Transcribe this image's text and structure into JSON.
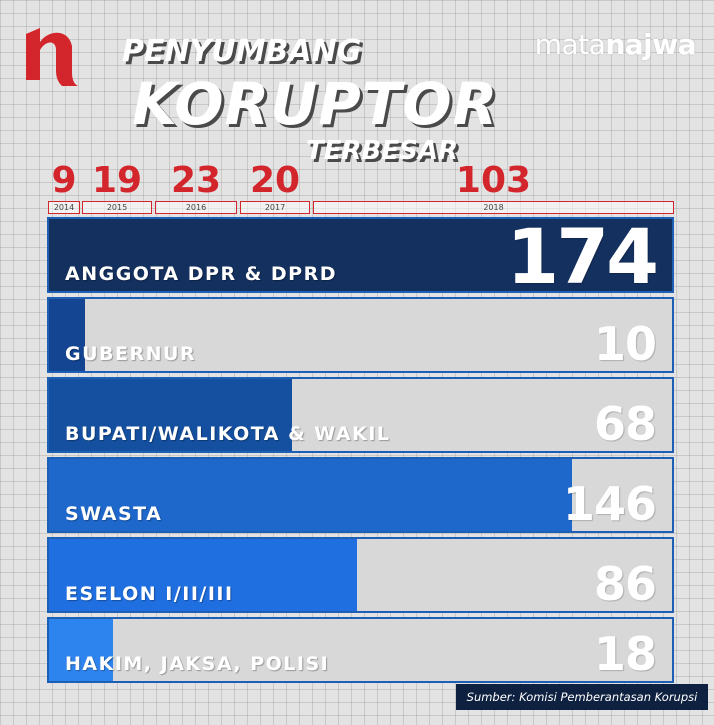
{
  "header": {
    "title_line1": "PENYUMBANG",
    "title_line2": "KORUPTOR",
    "title_line3": "TERBESAR",
    "brand_part1": "mata",
    "brand_part2": "najwa",
    "logo_icon": "najwa-n-logo-icon"
  },
  "colors": {
    "accent_red": "#d3262c",
    "row_border": "#1d5fb5",
    "row_background": "#d8d8d8",
    "source_background": "#0f2140"
  },
  "years": [
    {
      "count": "9",
      "year": "2014"
    },
    {
      "count": "19",
      "year": "2015"
    },
    {
      "count": "23",
      "year": "2016"
    },
    {
      "count": "20",
      "year": "2017"
    },
    {
      "count": "103",
      "year": "2018"
    }
  ],
  "chart_data": {
    "type": "bar",
    "title": "PENYUMBANG KORUPTOR TERBESAR",
    "categories": [
      "ANGGOTA DPR & DPRD",
      "GUBERNUR",
      "BUPATI/WALIKOTA & WAKIL",
      "SWASTA",
      "ESELON I/II/III",
      "HAKIM, JAKSA, POLISI"
    ],
    "values": [
      174,
      10,
      68,
      146,
      86,
      18
    ],
    "fill_colors": [
      "#14305f",
      "#134592",
      "#14509f",
      "#1e68cc",
      "#1f6fe0",
      "#2e84ee"
    ],
    "xlim": [
      0,
      174
    ],
    "orientation": "horizontal",
    "grid": true,
    "legend": "none"
  },
  "source": {
    "text": "Sumber: Komisi Pemberantasan Korupsi"
  }
}
